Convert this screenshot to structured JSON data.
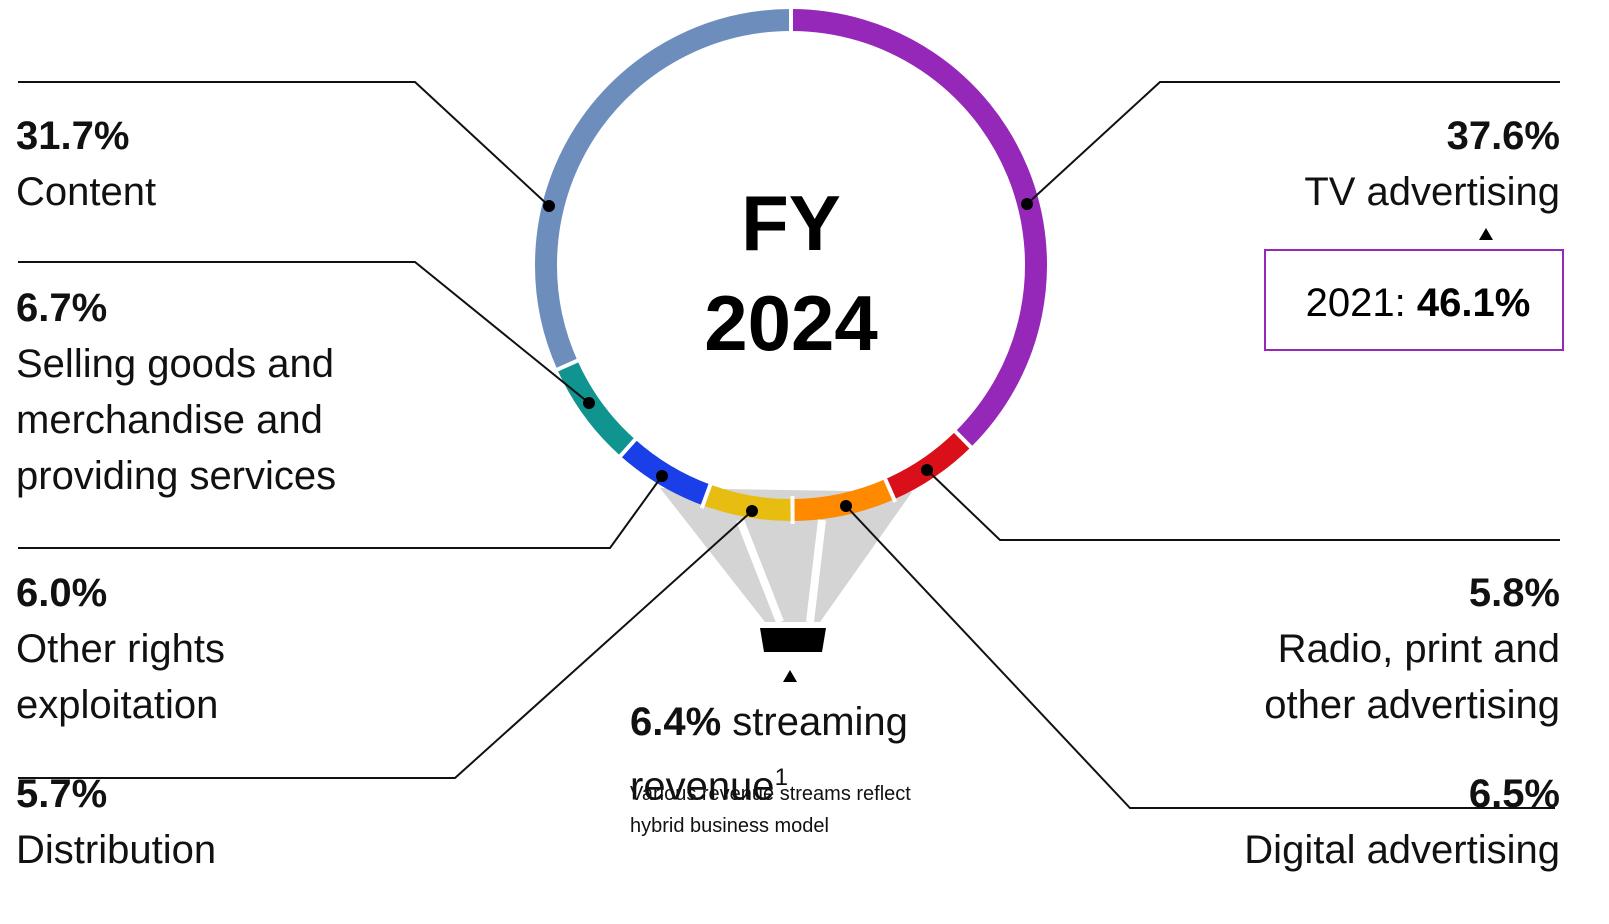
{
  "chart_data": {
    "type": "pie",
    "donut": true,
    "center_label": [
      "FY",
      "2024"
    ],
    "categories": [
      "TV advertising",
      "Radio, print and other advertising",
      "Digital advertising",
      "Distribution",
      "Other rights exploitation",
      "Selling goods and merchandise and providing services",
      "Content"
    ],
    "values": [
      37.6,
      5.8,
      6.5,
      5.7,
      6.0,
      6.7,
      31.7
    ],
    "value_labels": [
      "37.6%",
      "5.8%",
      "6.5%",
      "5.7%",
      "6.0%",
      "6.7%",
      "31.7%"
    ],
    "colors": [
      "#9528b8",
      "#d9101a",
      "#ff8a00",
      "#e8bd12",
      "#1a3fe8",
      "#0f9490",
      "#6d8ebd"
    ],
    "annotation": {
      "label": "6.4%",
      "text": "streaming revenue",
      "superscript": "1",
      "note": "Various revenue streams reflect hybrid business model"
    },
    "comparison": {
      "label": "2021:",
      "value_label": "46.1%"
    }
  }
}
